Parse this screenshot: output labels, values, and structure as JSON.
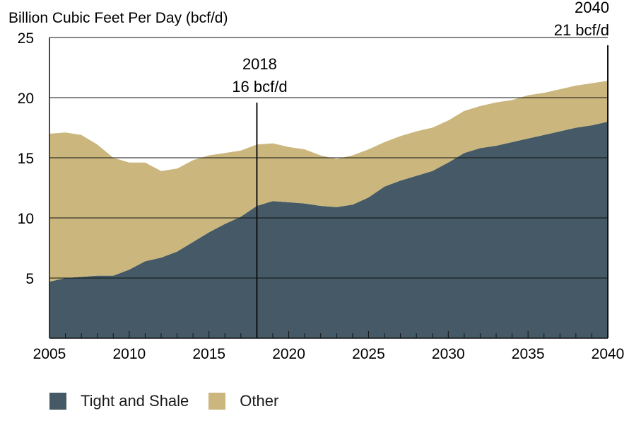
{
  "chart_data": {
    "type": "area",
    "stacked": true,
    "title": "",
    "ylabel": "Billion Cubic Feet Per Day (bcf/d)",
    "xlabel": "",
    "xlim": [
      2005,
      2040
    ],
    "ylim": [
      0,
      25
    ],
    "x_ticks": [
      2005,
      2010,
      2015,
      2020,
      2025,
      2030,
      2035,
      2040
    ],
    "y_ticks": [
      5,
      10,
      15,
      20,
      25
    ],
    "grid": "horizontal",
    "legend_position": "bottom-left",
    "x": [
      2005,
      2006,
      2007,
      2008,
      2009,
      2010,
      2011,
      2012,
      2013,
      2014,
      2015,
      2016,
      2017,
      2018,
      2019,
      2020,
      2021,
      2022,
      2023,
      2024,
      2025,
      2026,
      2027,
      2028,
      2029,
      2030,
      2031,
      2032,
      2033,
      2034,
      2035,
      2036,
      2037,
      2038,
      2039,
      2040
    ],
    "series": [
      {
        "name": "Tight and Shale",
        "color": "#455a66",
        "values": [
          4.7,
          5.0,
          5.1,
          5.2,
          5.2,
          5.7,
          6.4,
          6.7,
          7.2,
          8.0,
          8.8,
          9.5,
          10.1,
          11.0,
          11.4,
          11.3,
          11.2,
          11.0,
          10.9,
          11.1,
          11.7,
          12.6,
          13.1,
          13.5,
          13.9,
          14.6,
          15.4,
          15.8,
          16.0,
          16.3,
          16.6,
          16.9,
          17.2,
          17.5,
          17.7,
          18.0
        ]
      },
      {
        "name": "Other",
        "color": "#cbb77e",
        "values": [
          12.3,
          12.1,
          11.8,
          10.9,
          9.8,
          8.9,
          8.2,
          7.2,
          6.9,
          6.8,
          6.4,
          5.9,
          5.5,
          5.1,
          4.8,
          4.6,
          4.5,
          4.2,
          4.0,
          4.1,
          4.0,
          3.7,
          3.7,
          3.7,
          3.6,
          3.5,
          3.5,
          3.5,
          3.6,
          3.5,
          3.6,
          3.5,
          3.5,
          3.5,
          3.5,
          3.4
        ]
      }
    ],
    "annotations": [
      {
        "x": 2018,
        "value": 16,
        "line1": "2018",
        "line2": "16 bcf/d"
      },
      {
        "x": 2040,
        "value": 21,
        "line1": "2040",
        "line2": "21 bcf/d"
      }
    ]
  }
}
